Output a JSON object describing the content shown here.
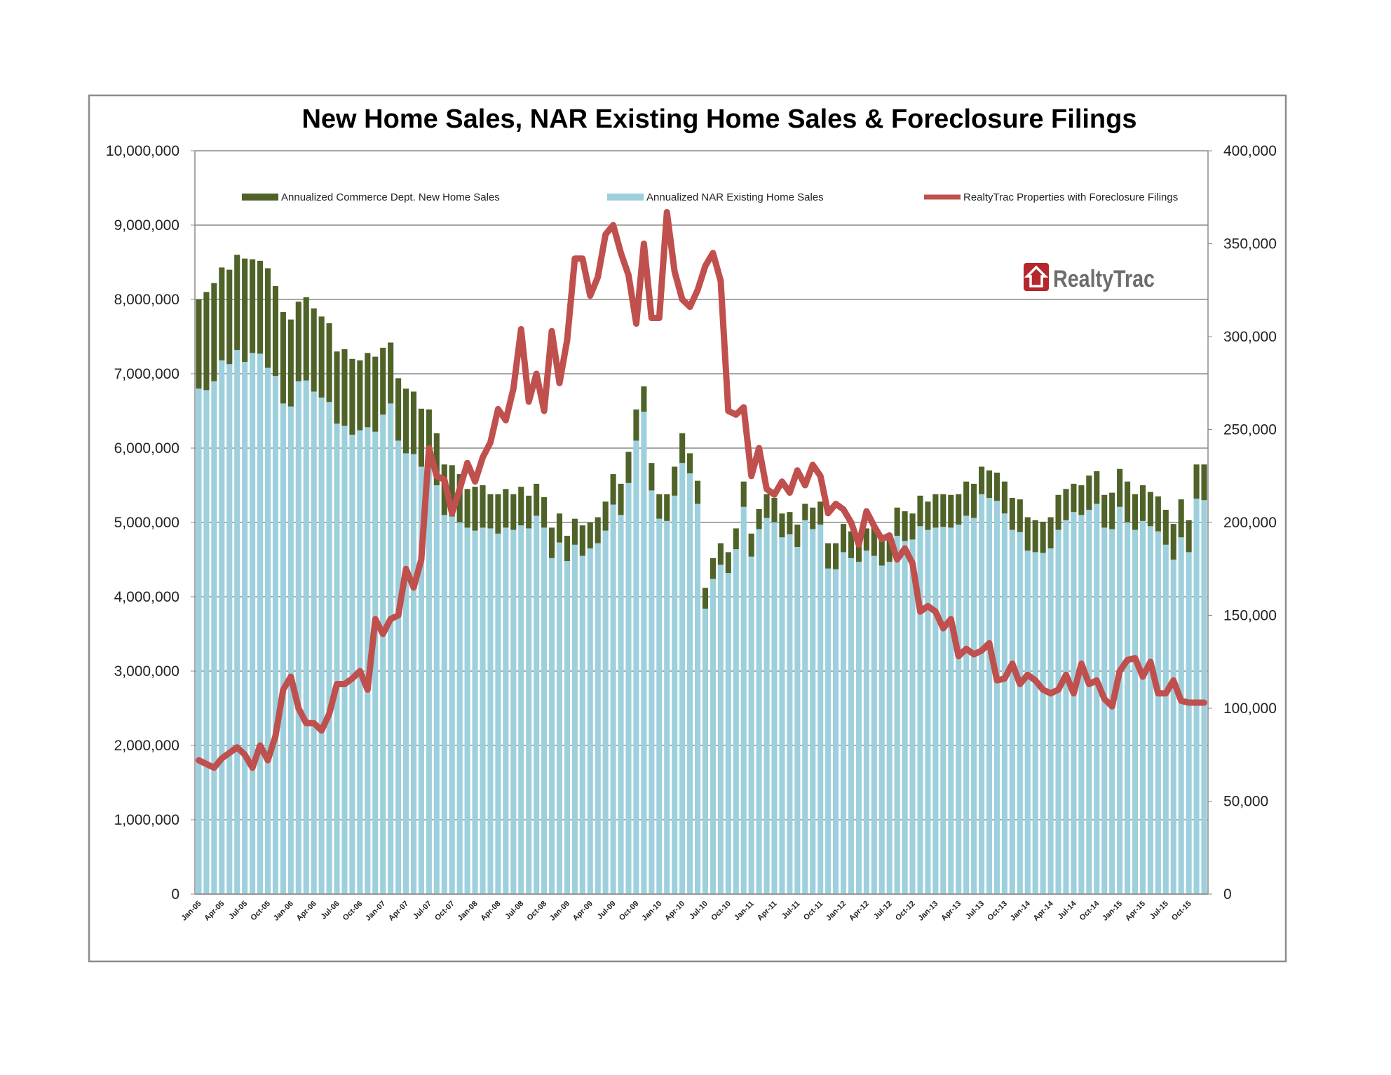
{
  "chart_data": {
    "type": "bar+line",
    "title": "New Home Sales, NAR Existing Home Sales & Foreclosure Filings",
    "legend_position": "top",
    "grid": true,
    "stacked": true,
    "y_left": {
      "range": [
        0,
        10000000
      ],
      "ticks": [
        "0",
        "1,000,000",
        "2,000,000",
        "3,000,000",
        "4,000,000",
        "5,000,000",
        "6,000,000",
        "7,000,000",
        "8,000,000",
        "9,000,000",
        "10,000,000"
      ]
    },
    "y_right": {
      "range": [
        0,
        400000
      ],
      "ticks": [
        "0",
        "50,000",
        "100,000",
        "150,000",
        "200,000",
        "250,000",
        "300,000",
        "350,000",
        "400,000"
      ]
    },
    "categories": [
      "Jan-05",
      "Feb-05",
      "Mar-05",
      "Apr-05",
      "May-05",
      "Jun-05",
      "Jul-05",
      "Aug-05",
      "Sep-05",
      "Oct-05",
      "Nov-05",
      "Dec-05",
      "Jan-06",
      "Feb-06",
      "Mar-06",
      "Apr-06",
      "May-06",
      "Jun-06",
      "Jul-06",
      "Aug-06",
      "Sep-06",
      "Oct-06",
      "Nov-06",
      "Dec-06",
      "Jan-07",
      "Feb-07",
      "Mar-07",
      "Apr-07",
      "May-07",
      "Jun-07",
      "Jul-07",
      "Aug-07",
      "Sep-07",
      "Oct-07",
      "Nov-07",
      "Dec-07",
      "Jan-08",
      "Feb-08",
      "Mar-08",
      "Apr-08",
      "May-08",
      "Jun-08",
      "Jul-08",
      "Aug-08",
      "Sep-08",
      "Oct-08",
      "Nov-08",
      "Dec-08",
      "Jan-09",
      "Feb-09",
      "Mar-09",
      "Apr-09",
      "May-09",
      "Jun-09",
      "Jul-09",
      "Aug-09",
      "Sep-09",
      "Oct-09",
      "Nov-09",
      "Dec-09",
      "Jan-10",
      "Feb-10",
      "Mar-10",
      "Apr-10",
      "May-10",
      "Jun-10",
      "Jul-10",
      "Aug-10",
      "Sep-10",
      "Oct-10",
      "Nov-10",
      "Dec-10",
      "Jan-11",
      "Feb-11",
      "Mar-11",
      "Apr-11",
      "May-11",
      "Jun-11",
      "Jul-11",
      "Aug-11",
      "Sep-11",
      "Oct-11",
      "Nov-11",
      "Dec-11",
      "Jan-12",
      "Feb-12",
      "Mar-12",
      "Apr-12",
      "May-12",
      "Jun-12",
      "Jul-12",
      "Aug-12",
      "Sep-12",
      "Oct-12",
      "Nov-12",
      "Dec-12",
      "Jan-13",
      "Feb-13",
      "Mar-13",
      "Apr-13",
      "May-13",
      "Jun-13",
      "Jul-13",
      "Aug-13",
      "Sep-13",
      "Oct-13",
      "Nov-13",
      "Dec-13",
      "Jan-14",
      "Feb-14",
      "Mar-14",
      "Apr-14",
      "May-14",
      "Jun-14",
      "Jul-14",
      "Aug-14",
      "Sep-14",
      "Oct-14",
      "Nov-14",
      "Dec-14",
      "Jan-15",
      "Feb-15",
      "Mar-15",
      "Apr-15",
      "May-15",
      "Jun-15",
      "Jul-15",
      "Aug-15",
      "Sep-15",
      "Oct-15",
      "Nov-15",
      "Dec-15"
    ],
    "series": [
      {
        "name": "Annualized NAR Existing Home Sales",
        "type": "bar",
        "axis": "left",
        "color": "#9dd0dc",
        "values": [
          6800000,
          6780000,
          6900000,
          7180000,
          7130000,
          7320000,
          7160000,
          7280000,
          7270000,
          7080000,
          6970000,
          6600000,
          6560000,
          6900000,
          6910000,
          6760000,
          6680000,
          6620000,
          6330000,
          6300000,
          6180000,
          6240000,
          6280000,
          6220000,
          6450000,
          6600000,
          6100000,
          5930000,
          5920000,
          5750000,
          5750000,
          5500000,
          5100000,
          5080000,
          5000000,
          4930000,
          4890000,
          4930000,
          4920000,
          4850000,
          4930000,
          4900000,
          4960000,
          4920000,
          5090000,
          4930000,
          4520000,
          4730000,
          4480000,
          4700000,
          4550000,
          4650000,
          4720000,
          4890000,
          5240000,
          5100000,
          5530000,
          6100000,
          6490000,
          5430000,
          5050000,
          5020000,
          5360000,
          5800000,
          5660000,
          5250000,
          3840000,
          4240000,
          4430000,
          4320000,
          4640000,
          5210000,
          4540000,
          4910000,
          5060000,
          5000000,
          4800000,
          4840000,
          4670000,
          5030000,
          4910000,
          4970000,
          4380000,
          4370000,
          4600000,
          4520000,
          4470000,
          4620000,
          4550000,
          4420000,
          4470000,
          4820000,
          4750000,
          4770000,
          4950000,
          4900000,
          4930000,
          4940000,
          4930000,
          4970000,
          5090000,
          5060000,
          5380000,
          5330000,
          5290000,
          5120000,
          4900000,
          4870000,
          4620000,
          4600000,
          4590000,
          4650000,
          4900000,
          5030000,
          5140000,
          5100000,
          5170000,
          5250000,
          4930000,
          4910000,
          5210000,
          5000000,
          4900000,
          5020000,
          4950000,
          4880000,
          4700000,
          4500000,
          4800000,
          4600000,
          5320000,
          5300000
        ]
      },
      {
        "name": "Annualized Commerce Dept. New Home Sales",
        "type": "bar",
        "axis": "left",
        "color": "#4f6228",
        "values": [
          1200000,
          1320000,
          1320000,
          1250000,
          1270000,
          1280000,
          1390000,
          1260000,
          1250000,
          1340000,
          1210000,
          1230000,
          1170000,
          1070000,
          1120000,
          1120000,
          1090000,
          1060000,
          970000,
          1030000,
          1020000,
          940000,
          1000000,
          1010000,
          900000,
          820000,
          840000,
          870000,
          840000,
          780000,
          770000,
          700000,
          680000,
          690000,
          650000,
          520000,
          590000,
          570000,
          460000,
          530000,
          520000,
          480000,
          520000,
          440000,
          430000,
          410000,
          410000,
          390000,
          340000,
          350000,
          410000,
          350000,
          350000,
          390000,
          410000,
          420000,
          420000,
          420000,
          340000,
          370000,
          330000,
          360000,
          390000,
          400000,
          270000,
          310000,
          280000,
          280000,
          290000,
          280000,
          280000,
          340000,
          310000,
          270000,
          320000,
          330000,
          320000,
          300000,
          300000,
          220000,
          290000,
          310000,
          340000,
          350000,
          380000,
          360000,
          350000,
          300000,
          400000,
          400000,
          350000,
          380000,
          400000,
          350000,
          410000,
          380000,
          450000,
          440000,
          440000,
          410000,
          460000,
          460000,
          370000,
          370000,
          380000,
          430000,
          430000,
          440000,
          450000,
          430000,
          420000,
          420000,
          470000,
          420000,
          380000,
          400000,
          460000,
          440000,
          440000,
          490000,
          510000,
          550000,
          480000,
          480000,
          460000,
          470000,
          470000,
          480000,
          510000,
          430000,
          460000,
          480000
        ]
      },
      {
        "name": "RealtyTrac Properties with Foreclosure Filings",
        "type": "line",
        "axis": "right",
        "color": "#c0504d",
        "values": [
          72000,
          70000,
          68000,
          73000,
          76000,
          79000,
          75000,
          68000,
          80000,
          72000,
          85000,
          110000,
          117000,
          100000,
          92000,
          92000,
          88000,
          97000,
          113000,
          113000,
          116000,
          120000,
          110000,
          148000,
          140000,
          148000,
          150000,
          175000,
          165000,
          180000,
          240000,
          225000,
          223000,
          205000,
          218000,
          232000,
          222000,
          235000,
          243000,
          261000,
          255000,
          272000,
          304000,
          265000,
          280000,
          260000,
          303000,
          275000,
          298000,
          342000,
          342000,
          322000,
          332000,
          355000,
          360000,
          345000,
          333000,
          307000,
          350000,
          310000,
          310000,
          367000,
          335000,
          320000,
          316000,
          325000,
          338000,
          345000,
          330000,
          260000,
          258000,
          262000,
          225000,
          240000,
          218000,
          215000,
          222000,
          216000,
          228000,
          220000,
          231000,
          225000,
          205000,
          210000,
          207000,
          200000,
          188000,
          206000,
          198000,
          191000,
          193000,
          180000,
          186000,
          178000,
          152000,
          155000,
          152000,
          143000,
          148000,
          128000,
          132000,
          129000,
          131000,
          135000,
          115000,
          116000,
          124000,
          113000,
          118000,
          115000,
          110000,
          108000,
          110000,
          118000,
          108000,
          124000,
          113000,
          115000,
          105000,
          101000,
          120000,
          126000,
          127000,
          117000,
          125000,
          108000,
          108000,
          115000,
          104000,
          103000,
          103000,
          103000
        ]
      }
    ]
  },
  "logo": {
    "text": "RealtyTrac",
    "icon": "house-icon",
    "color": "#b5272d"
  }
}
